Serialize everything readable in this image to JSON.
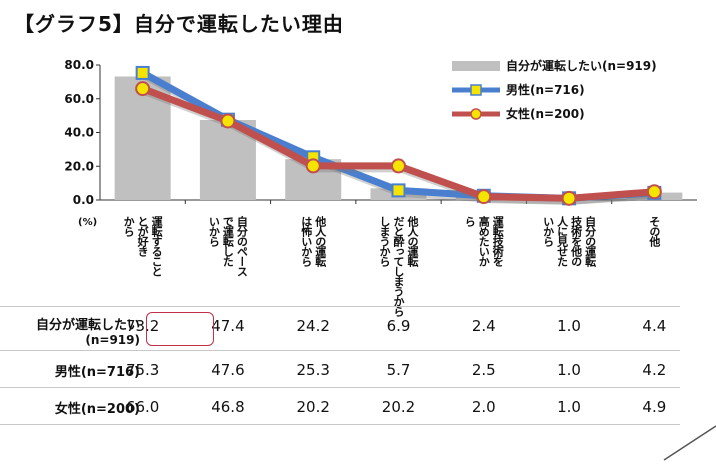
{
  "title": "【グラフ5】自分で運転したい理由",
  "chart_data": {
    "type": "bar",
    "unit_label": "(%)",
    "ylim": [
      0,
      80
    ],
    "yticks": [
      "0.0",
      "20.0",
      "40.0",
      "60.0",
      "80.0"
    ],
    "categories": [
      [
        "運転すること",
        "とが好き",
        "から"
      ],
      [
        "自分のペース",
        "で運転した",
        "いから"
      ],
      [
        "他人の運転",
        "は怖いから"
      ],
      [
        "他人の運転",
        "だと酔ってしまうから",
        "しまうから"
      ],
      [
        "運転技術を",
        "高めたいか",
        "ら"
      ],
      [
        "自分の運転",
        "技術を他の",
        "人に見せた",
        "いから"
      ],
      [
        "その他"
      ]
    ],
    "series": [
      {
        "name": "自分が運転したい(n=919)",
        "kind": "bar",
        "color": "#c0c0c0",
        "values": [
          73.2,
          47.4,
          24.2,
          6.9,
          2.4,
          1.0,
          4.4
        ]
      },
      {
        "name": "男性(n=716)",
        "kind": "line",
        "color": "#4a7fd0",
        "marker_color": "#f5e400",
        "values": [
          75.3,
          47.6,
          25.3,
          5.7,
          2.5,
          1.0,
          4.2
        ]
      },
      {
        "name": "女性(n=200)",
        "kind": "line",
        "color": "#c0504d",
        "marker_color": "#f5e400",
        "values": [
          66.0,
          46.8,
          20.2,
          20.2,
          2.0,
          1.0,
          4.9
        ]
      }
    ],
    "table": {
      "rows": [
        {
          "label": "自分が運転したい",
          "sub": "(n=919)",
          "values": [
            "73.2",
            "47.4",
            "24.2",
            "6.9",
            "2.4",
            "1.0",
            "4.4"
          ]
        },
        {
          "label": "男性(n=716)",
          "values": [
            "75.3",
            "47.6",
            "25.3",
            "5.7",
            "2.5",
            "1.0",
            "4.2"
          ]
        },
        {
          "label": "女性(n=200)",
          "values": [
            "66.0",
            "46.8",
            "20.2",
            "20.2",
            "2.0",
            "1.0",
            "4.9"
          ]
        }
      ]
    }
  }
}
